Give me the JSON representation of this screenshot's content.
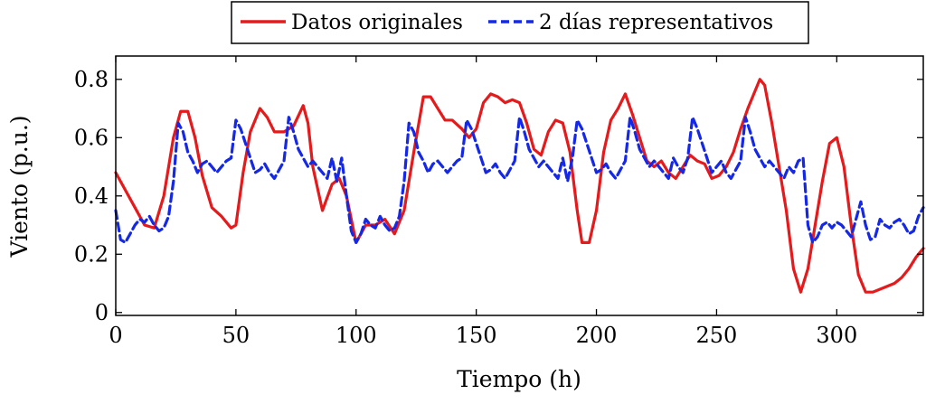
{
  "chart_data": {
    "type": "line",
    "title": "",
    "xlabel": "Tiempo (h)",
    "ylabel": "Viento (p.u.)",
    "xlim": [
      0,
      336
    ],
    "ylim": [
      -0.01,
      0.88
    ],
    "xticks": [
      0,
      50,
      100,
      150,
      200,
      250,
      300
    ],
    "xtick_labels": [
      "0",
      "50",
      "100",
      "150",
      "200",
      "250",
      "300"
    ],
    "yticks": [
      0,
      0.2,
      0.4,
      0.6,
      0.8
    ],
    "ytick_labels": [
      "0",
      "0.2",
      "0.4",
      "0.6",
      "0.8"
    ],
    "grid": false,
    "legend_position": "top-center",
    "series": [
      {
        "name": "Datos originales",
        "color": "#e41a1c",
        "style": "solid",
        "x": [
          0,
          4,
          8,
          12,
          16,
          20,
          24,
          27,
          30,
          33,
          36,
          40,
          44,
          48,
          50,
          53,
          56,
          60,
          63,
          66,
          70,
          74,
          78,
          80,
          82,
          86,
          90,
          93,
          96,
          100,
          104,
          108,
          112,
          116,
          120,
          124,
          128,
          131,
          134,
          137,
          140,
          144,
          147,
          150,
          153,
          156,
          159,
          162,
          165,
          168,
          171,
          174,
          177,
          180,
          183,
          186,
          189,
          192,
          194,
          197,
          200,
          203,
          206,
          209,
          212,
          215,
          218,
          221,
          224,
          227,
          230,
          233,
          236,
          239,
          242,
          245,
          248,
          251,
          254,
          257,
          260,
          263,
          266,
          268,
          270,
          273,
          276,
          279,
          282,
          285,
          288,
          291,
          294,
          297,
          300,
          303,
          306,
          309,
          312,
          315,
          318,
          321,
          324,
          327,
          330,
          333,
          336
        ],
        "y": [
          0.48,
          0.42,
          0.36,
          0.3,
          0.29,
          0.4,
          0.6,
          0.69,
          0.69,
          0.6,
          0.47,
          0.36,
          0.33,
          0.29,
          0.3,
          0.48,
          0.62,
          0.7,
          0.67,
          0.62,
          0.62,
          0.64,
          0.71,
          0.65,
          0.5,
          0.35,
          0.44,
          0.46,
          0.4,
          0.24,
          0.3,
          0.3,
          0.32,
          0.27,
          0.35,
          0.55,
          0.74,
          0.74,
          0.7,
          0.66,
          0.66,
          0.63,
          0.6,
          0.63,
          0.72,
          0.75,
          0.74,
          0.72,
          0.73,
          0.72,
          0.65,
          0.56,
          0.54,
          0.62,
          0.66,
          0.65,
          0.55,
          0.35,
          0.24,
          0.24,
          0.35,
          0.55,
          0.66,
          0.7,
          0.75,
          0.68,
          0.6,
          0.52,
          0.5,
          0.52,
          0.48,
          0.46,
          0.5,
          0.54,
          0.52,
          0.51,
          0.46,
          0.47,
          0.5,
          0.55,
          0.63,
          0.7,
          0.76,
          0.8,
          0.78,
          0.65,
          0.5,
          0.35,
          0.15,
          0.07,
          0.15,
          0.3,
          0.45,
          0.58,
          0.6,
          0.5,
          0.3,
          0.13,
          0.07,
          0.07,
          0.08,
          0.09,
          0.1,
          0.12,
          0.15,
          0.19,
          0.22
        ]
      },
      {
        "name": "2 días representativos",
        "color": "#1428e6",
        "style": "dashed",
        "x": [
          0,
          2,
          4,
          6,
          8,
          10,
          12,
          14,
          16,
          18,
          20,
          22,
          24,
          26,
          28,
          30,
          32,
          34,
          36,
          38,
          40,
          42,
          44,
          46,
          48,
          50,
          52,
          54,
          56,
          58,
          60,
          62,
          64,
          66,
          68,
          70,
          72,
          74,
          76,
          78,
          80,
          82,
          84,
          86,
          88,
          90,
          92,
          94,
          96,
          98,
          100,
          102,
          104,
          106,
          108,
          110,
          112,
          114,
          116,
          118,
          120,
          122,
          124,
          126,
          128,
          130,
          132,
          134,
          136,
          138,
          140,
          142,
          144,
          146,
          148,
          150,
          152,
          154,
          156,
          158,
          160,
          162,
          164,
          166,
          168,
          170,
          172,
          174,
          176,
          178,
          180,
          182,
          184,
          186,
          188,
          190,
          192,
          194,
          196,
          198,
          200,
          202,
          204,
          206,
          208,
          210,
          212,
          214,
          216,
          218,
          220,
          222,
          224,
          226,
          228,
          230,
          232,
          234,
          236,
          238,
          240,
          242,
          244,
          246,
          248,
          250,
          252,
          254,
          256,
          258,
          260,
          262,
          264,
          266,
          268,
          270,
          272,
          274,
          276,
          278,
          280,
          282,
          284,
          286,
          288,
          290,
          292,
          294,
          296,
          298,
          300,
          302,
          304,
          306,
          308,
          310,
          312,
          314,
          316,
          318,
          320,
          322,
          324,
          326,
          328,
          330,
          332,
          334,
          336
        ],
        "y": [
          0.35,
          0.25,
          0.24,
          0.27,
          0.3,
          0.32,
          0.31,
          0.33,
          0.3,
          0.28,
          0.29,
          0.33,
          0.45,
          0.65,
          0.62,
          0.55,
          0.52,
          0.48,
          0.51,
          0.52,
          0.5,
          0.48,
          0.5,
          0.52,
          0.53,
          0.66,
          0.63,
          0.58,
          0.53,
          0.48,
          0.49,
          0.51,
          0.48,
          0.46,
          0.49,
          0.52,
          0.67,
          0.62,
          0.56,
          0.53,
          0.5,
          0.52,
          0.5,
          0.48,
          0.46,
          0.53,
          0.45,
          0.53,
          0.4,
          0.28,
          0.24,
          0.27,
          0.32,
          0.3,
          0.29,
          0.33,
          0.3,
          0.28,
          0.29,
          0.33,
          0.45,
          0.65,
          0.62,
          0.55,
          0.52,
          0.48,
          0.51,
          0.52,
          0.5,
          0.48,
          0.5,
          0.52,
          0.53,
          0.66,
          0.63,
          0.58,
          0.53,
          0.48,
          0.49,
          0.51,
          0.48,
          0.46,
          0.49,
          0.52,
          0.67,
          0.62,
          0.56,
          0.53,
          0.5,
          0.52,
          0.5,
          0.48,
          0.46,
          0.53,
          0.45,
          0.53,
          0.66,
          0.63,
          0.58,
          0.53,
          0.48,
          0.49,
          0.51,
          0.48,
          0.46,
          0.49,
          0.52,
          0.67,
          0.62,
          0.56,
          0.53,
          0.5,
          0.52,
          0.5,
          0.48,
          0.46,
          0.53,
          0.5,
          0.48,
          0.53,
          0.67,
          0.63,
          0.58,
          0.53,
          0.48,
          0.5,
          0.52,
          0.48,
          0.46,
          0.49,
          0.52,
          0.67,
          0.62,
          0.56,
          0.53,
          0.5,
          0.52,
          0.5,
          0.48,
          0.46,
          0.5,
          0.48,
          0.52,
          0.53,
          0.3,
          0.24,
          0.26,
          0.3,
          0.31,
          0.29,
          0.31,
          0.3,
          0.28,
          0.26,
          0.32,
          0.38,
          0.3,
          0.25,
          0.26,
          0.32,
          0.3,
          0.29,
          0.31,
          0.32,
          0.3,
          0.27,
          0.28,
          0.33,
          0.36
        ]
      }
    ]
  }
}
